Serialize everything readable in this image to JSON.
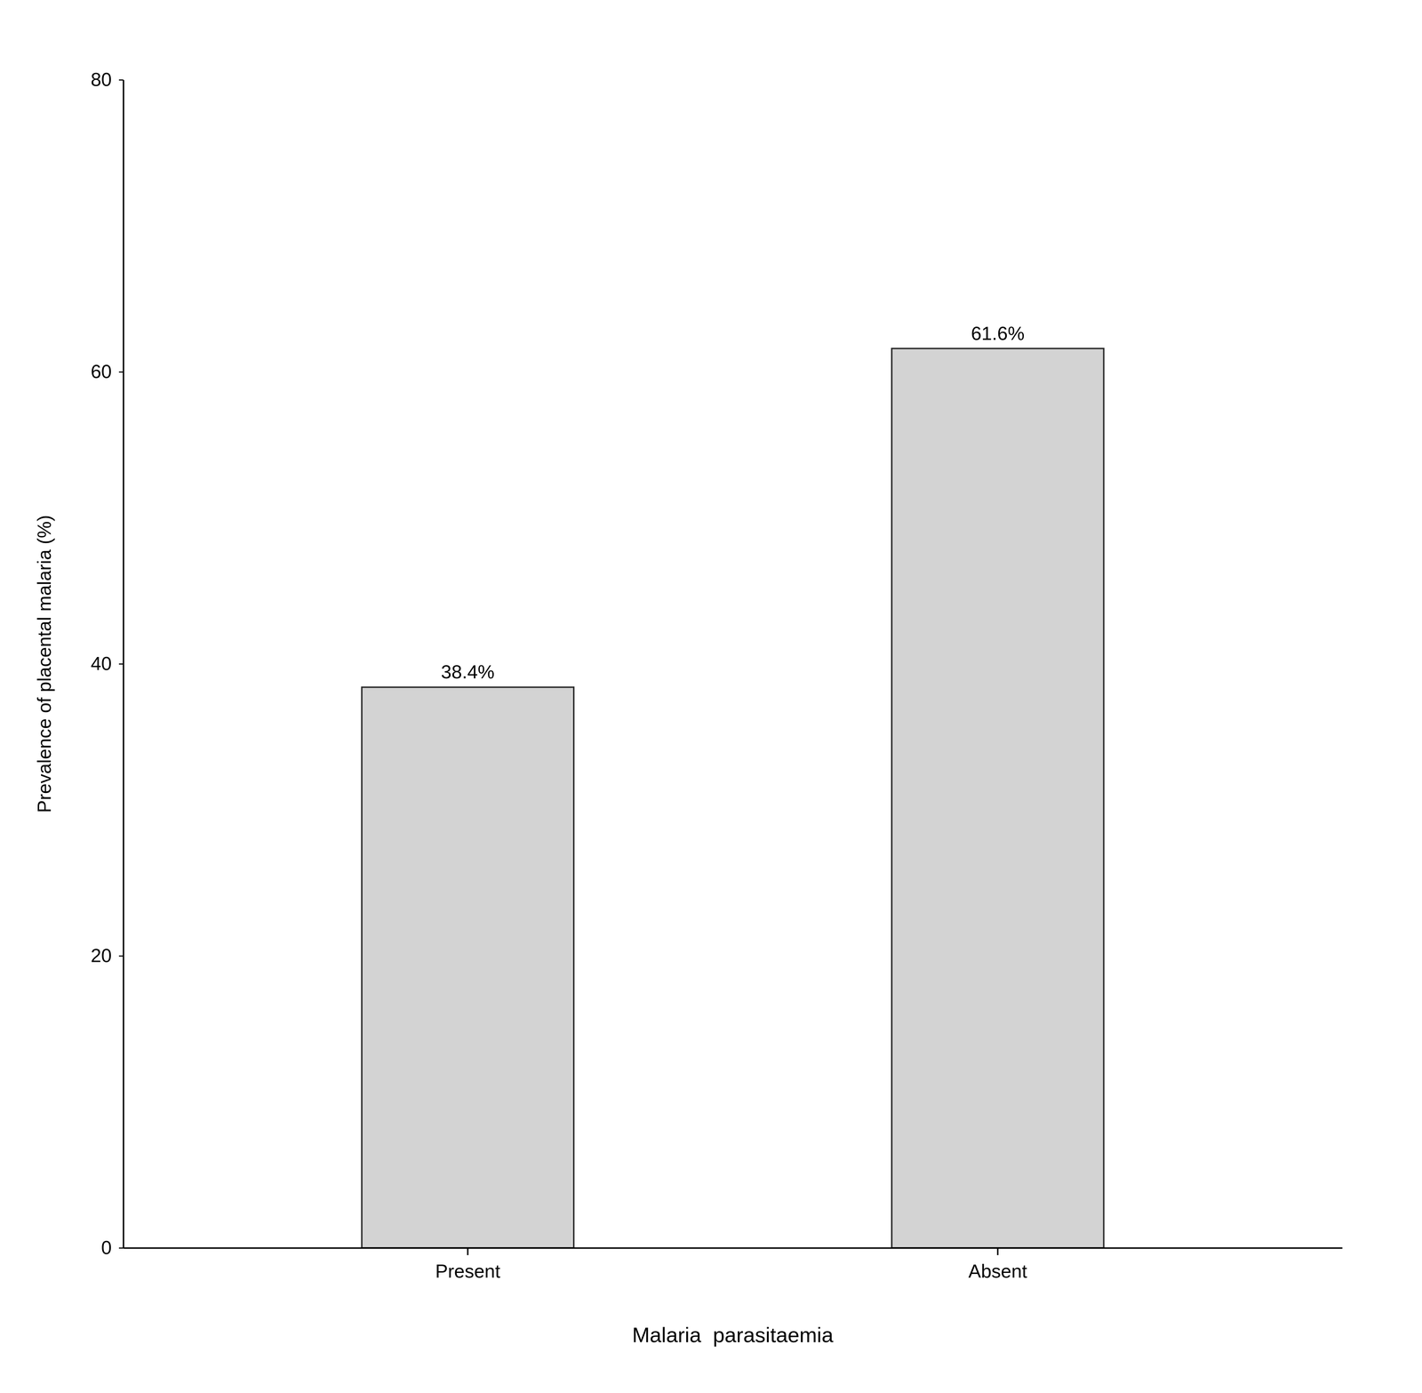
{
  "chart_data": {
    "type": "bar",
    "categories": [
      "Present",
      "Absent"
    ],
    "values": [
      38.4,
      61.6
    ],
    "value_labels": [
      "38.4%",
      "61.6%"
    ],
    "data_labels": true,
    "color": "#d3d3d3",
    "xlabel": "Malaria  parasitaemia",
    "ylabel": "Prevalence of placental malaria (%)",
    "ylim": [
      0,
      80
    ],
    "yticks": [
      0,
      20,
      40,
      60,
      80
    ],
    "grid": false
  }
}
